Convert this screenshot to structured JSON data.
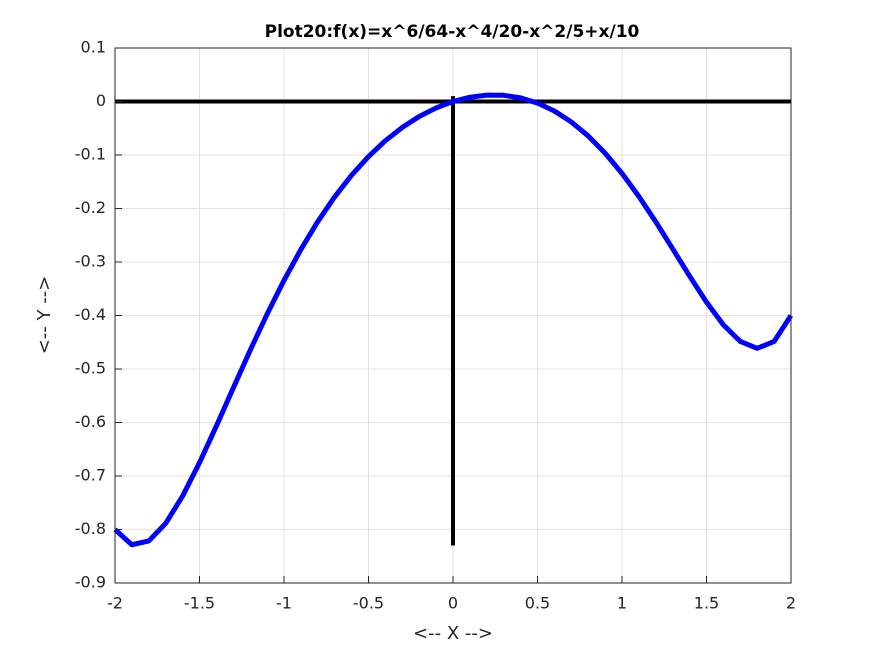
{
  "chart_data": {
    "type": "line",
    "title": "Plot20:f(x)=x^6/64-x^4/20-x^2/5+x/10",
    "xlabel": "<-- X -->",
    "ylabel": "<-- Y -->",
    "x": [
      -2,
      -1.9,
      -1.8,
      -1.7,
      -1.6,
      -1.5,
      -1.4,
      -1.3,
      -1.2,
      -1.1,
      -1,
      -0.9,
      -0.8,
      -0.7,
      -0.6,
      -0.5,
      -0.4,
      -0.3,
      -0.2,
      -0.1,
      0,
      0.1,
      0.2,
      0.3,
      0.4,
      0.5,
      0.6,
      0.7,
      0.8,
      0.9,
      1,
      1.1,
      1.2,
      1.3,
      1.4,
      1.5,
      1.6,
      1.7,
      1.8,
      1.9,
      2
    ],
    "values": [
      -0.8,
      -0.8285,
      -0.8214,
      -0.7885,
      -0.7375,
      -0.6751,
      -0.6064,
      -0.5354,
      -0.465,
      -0.3975,
      -0.3344,
      -0.2765,
      -0.2244,
      -0.1782,
      -0.1378,
      -0.1029,
      -0.0732,
      -0.0484,
      -0.0281,
      -0.012,
      0,
      0.008,
      0.0119,
      0.0116,
      0.0068,
      -0.0029,
      -0.0178,
      -0.0382,
      -0.0644,
      -0.0965,
      -0.1344,
      -0.1775,
      -0.225,
      -0.2754,
      -0.3264,
      -0.3751,
      -0.4175,
      -0.4485,
      -0.4614,
      -0.4485,
      -0.4
    ],
    "color": "#0000ff",
    "reference_lines": [
      {
        "x": [
          -2,
          2
        ],
        "values": [
          0,
          0
        ],
        "color": "#000000"
      },
      {
        "x": [
          0,
          0
        ],
        "values": [
          0.01,
          -0.83
        ],
        "color": "#000000"
      }
    ],
    "xlim": [
      -2,
      2
    ],
    "ylim": [
      -0.9,
      0.1
    ],
    "xticks": [
      -2,
      -1.5,
      -1,
      -0.5,
      0,
      0.5,
      1,
      1.5,
      2
    ],
    "yticks": [
      0.1,
      0,
      -0.1,
      -0.2,
      -0.3,
      -0.4,
      -0.5,
      -0.6,
      -0.7,
      -0.8,
      -0.9
    ],
    "grid": true
  }
}
